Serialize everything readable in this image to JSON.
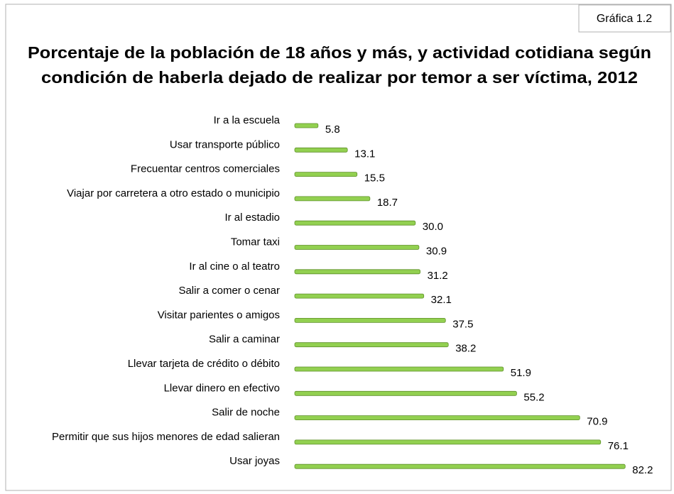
{
  "chart_data": {
    "type": "bar",
    "orientation": "horizontal",
    "label": "Gráfica 1.2",
    "title": [
      "Porcentaje de la población de 18 años y más, y actividad cotidiana según",
      "condición de haberla dejado de realizar por temor a ser víctima, 2012"
    ],
    "categories": [
      "Ir a la escuela",
      "Usar transporte público",
      "Frecuentar centros comerciales",
      "Viajar por carretera a otro estado o municipio",
      "Ir al estadio",
      "Tomar taxi",
      "Ir al cine o al teatro",
      "Salir a comer o cenar",
      "Visitar parientes o amigos",
      "Salir a caminar",
      "Llevar tarjeta de crédito o débito",
      "Llevar dinero en efectivo",
      "Salir de noche",
      "Permitir que sus hijos menores de edad salieran",
      "Usar joyas"
    ],
    "values": [
      5.8,
      13.1,
      15.5,
      18.7,
      30.0,
      30.9,
      31.2,
      32.1,
      37.5,
      38.2,
      51.9,
      55.2,
      70.9,
      76.1,
      82.2
    ],
    "value_labels": [
      "5.8",
      "13.1",
      "15.5",
      "18.7",
      "30.0",
      "30.9",
      "31.2",
      "32.1",
      "37.5",
      "38.2",
      "51.9",
      "55.2",
      "70.9",
      "76.1",
      "82.2"
    ],
    "color": "#92d050"
  }
}
